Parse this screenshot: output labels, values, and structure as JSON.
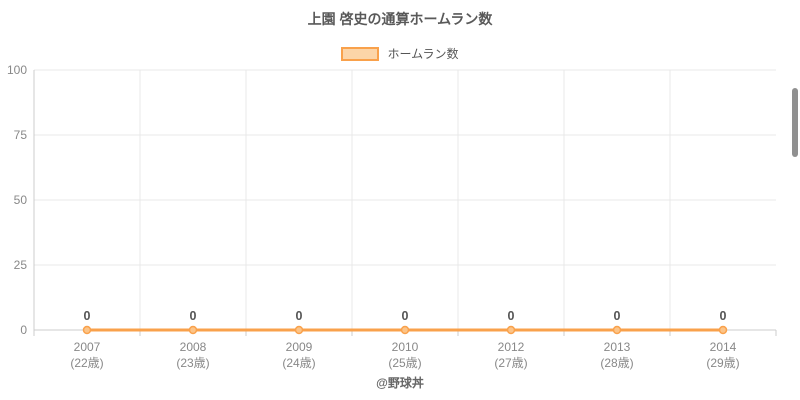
{
  "title": "上園 啓史の通算ホームラン数",
  "legend": {
    "label": "ホームラン数",
    "swatch_fill": "#fcd5a8",
    "swatch_border": "#f9a14b"
  },
  "caption": "@野球丼",
  "colors": {
    "line": "#f9a14b",
    "marker_fill": "#fcc488",
    "data_label": "#555555",
    "axis_text": "#888888",
    "grid": "#e8e8e8",
    "axis_line": "#cccccc",
    "title_text": "#595959",
    "scrollbar": "#909090"
  },
  "chart_data": {
    "type": "line",
    "title": "上園 啓史の通算ホームラン数",
    "categories": [
      "2007",
      "2008",
      "2009",
      "2010",
      "2012",
      "2013",
      "2014"
    ],
    "category_sublabels": [
      "(22歳)",
      "(23歳)",
      "(24歳)",
      "(25歳)",
      "(27歳)",
      "(28歳)",
      "(29歳)"
    ],
    "series": [
      {
        "name": "ホームラン数",
        "values": [
          0,
          0,
          0,
          0,
          0,
          0,
          0
        ]
      }
    ],
    "data_labels": [
      "0",
      "0",
      "0",
      "0",
      "0",
      "0",
      "0"
    ],
    "xlabel": "",
    "ylabel": "",
    "ylim": [
      0,
      100
    ],
    "yticks": [
      0,
      25,
      50,
      75,
      100
    ],
    "grid": true,
    "legend_position": "top"
  }
}
